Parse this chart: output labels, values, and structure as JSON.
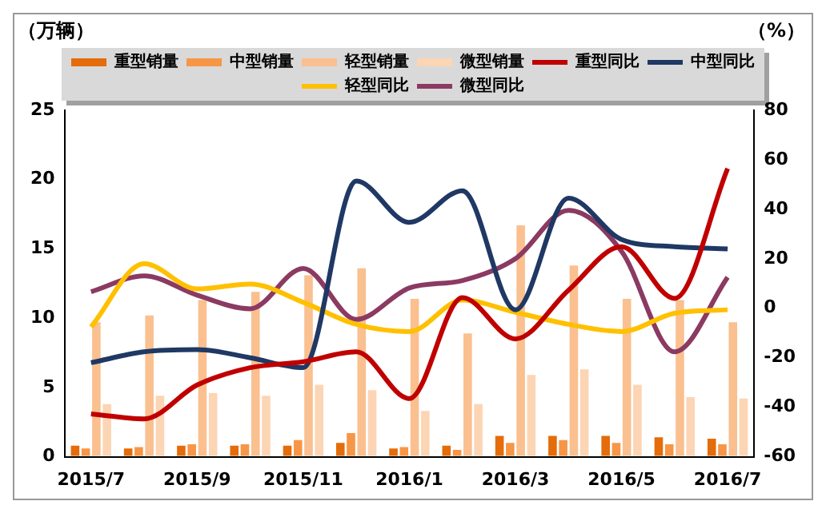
{
  "chart_data": {
    "type": "bar",
    "categories": [
      "2015/7",
      null,
      "2015/9",
      null,
      "2015/11",
      null,
      "2016/1",
      null,
      "2016/3",
      null,
      "2016/5",
      null,
      "2016/7"
    ],
    "series": [
      {
        "name": "重型销量",
        "color": "#e46c0a",
        "values": [
          0.8,
          0.6,
          0.8,
          0.8,
          0.8,
          1.0,
          0.6,
          0.8,
          1.5,
          1.5,
          1.5,
          1.4,
          1.3
        ]
      },
      {
        "name": "中型销量",
        "color": "#f79646",
        "values": [
          0.6,
          0.7,
          0.9,
          0.9,
          1.2,
          1.7,
          0.7,
          0.5,
          1.0,
          1.2,
          1.0,
          0.9,
          0.9
        ]
      },
      {
        "name": "轻型销量",
        "color": "#fac090",
        "values": [
          9.7,
          10.2,
          11.3,
          11.9,
          13.1,
          13.6,
          11.4,
          8.9,
          16.7,
          13.8,
          11.4,
          11.3,
          9.7
        ]
      },
      {
        "name": "微型销量",
        "color": "#fcd5b5",
        "values": [
          3.8,
          4.4,
          4.6,
          4.4,
          5.2,
          4.8,
          3.3,
          3.8,
          5.9,
          6.3,
          5.2,
          4.3,
          4.2
        ]
      },
      {
        "name": "重型同比",
        "type": "line",
        "axis": "y2",
        "color": "#c00000",
        "values": [
          -42.7,
          -44.7,
          -31,
          -24,
          -21.6,
          -17.6,
          -36.5,
          4.3,
          -12.4,
          7.3,
          24.9,
          4,
          56.5
        ]
      },
      {
        "name": "中型同比",
        "type": "line",
        "axis": "y2",
        "color": "#1f3864",
        "values": [
          -22,
          -17.6,
          -16.7,
          -20,
          -24,
          51.4,
          34.7,
          47.5,
          -0.6,
          44.5,
          27.8,
          24.9,
          24
        ]
      },
      {
        "name": "轻型同比",
        "type": "line",
        "axis": "y2",
        "color": "#ffc000",
        "values": [
          -7.5,
          18,
          7.8,
          9.8,
          2.4,
          -6.5,
          -9.4,
          3.3,
          -1.6,
          -6.5,
          -9.4,
          -2,
          -0.6
        ]
      },
      {
        "name": "微型同比",
        "type": "line",
        "axis": "y2",
        "color": "#8b3a62",
        "values": [
          6.7,
          13.1,
          5.3,
          -0.2,
          16.1,
          -4.5,
          8.2,
          11.2,
          20,
          39.6,
          23,
          -17.6,
          12.5
        ]
      }
    ],
    "ylabel": "（万辆）",
    "y2label": "（%）",
    "ylim": [
      0,
      25
    ],
    "yticks": [
      0,
      5,
      10,
      15,
      20,
      25
    ],
    "y2lim": [
      -60,
      80
    ],
    "y2ticks": [
      -60,
      -40,
      -20,
      0,
      20,
      40,
      60,
      80
    ],
    "legend": "top",
    "grid": false,
    "marker": "none"
  }
}
